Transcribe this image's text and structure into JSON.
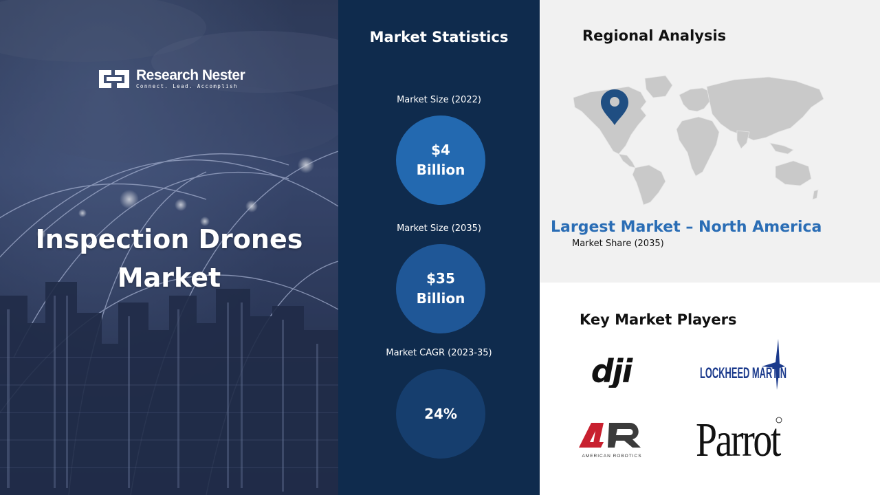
{
  "brand": {
    "name": "Research Nester",
    "tagline": "Connect. Lead. Accomplish"
  },
  "hero": {
    "title_line1": "Inspection Drones",
    "title_line2": "Market"
  },
  "stats": {
    "heading": "Market Statistics",
    "items": [
      {
        "label": "Market  Size (2022)",
        "value_line1": "$4",
        "value_line2": "Billion"
      },
      {
        "label": "Market  Size (2035)",
        "value_line1": "$35",
        "value_line2": "Billion"
      },
      {
        "label": "Market  CAGR (2023-35)",
        "value_line1": "24%",
        "value_line2": ""
      }
    ]
  },
  "region": {
    "heading": "Regional Analysis",
    "largest_market": "Largest Market – North America",
    "share_label": "Market  Share (2035)"
  },
  "players": {
    "heading": "Key Market Players",
    "logos": {
      "dji": "dji",
      "lockheed": "LOCKHEED MARTIN",
      "american_robotics_mark": "AR",
      "american_robotics": "AMERICAN ROBOTICS",
      "parrot": "Parrot"
    }
  },
  "colors": {
    "stats_bg": "#0f2b4d",
    "circle_1": "#2369b0",
    "circle_2": "#1f5797",
    "circle_3": "#163e6e",
    "accent_blue": "#2a6db5",
    "region_bg": "#f1f1f1",
    "pin": "#1f4e82"
  }
}
